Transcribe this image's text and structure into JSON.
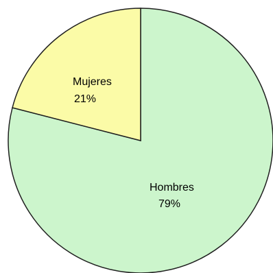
{
  "chart_data": {
    "type": "pie",
    "title": "",
    "slices": [
      {
        "label": "Hombres",
        "value": 79,
        "value_label": "79%",
        "color": "#ccf5cc"
      },
      {
        "label": "Mujeres",
        "value": 21,
        "value_label": "21%",
        "color": "#fbfba7"
      }
    ],
    "start_angle_deg": 0,
    "direction": "clockwise",
    "legend": "none"
  }
}
